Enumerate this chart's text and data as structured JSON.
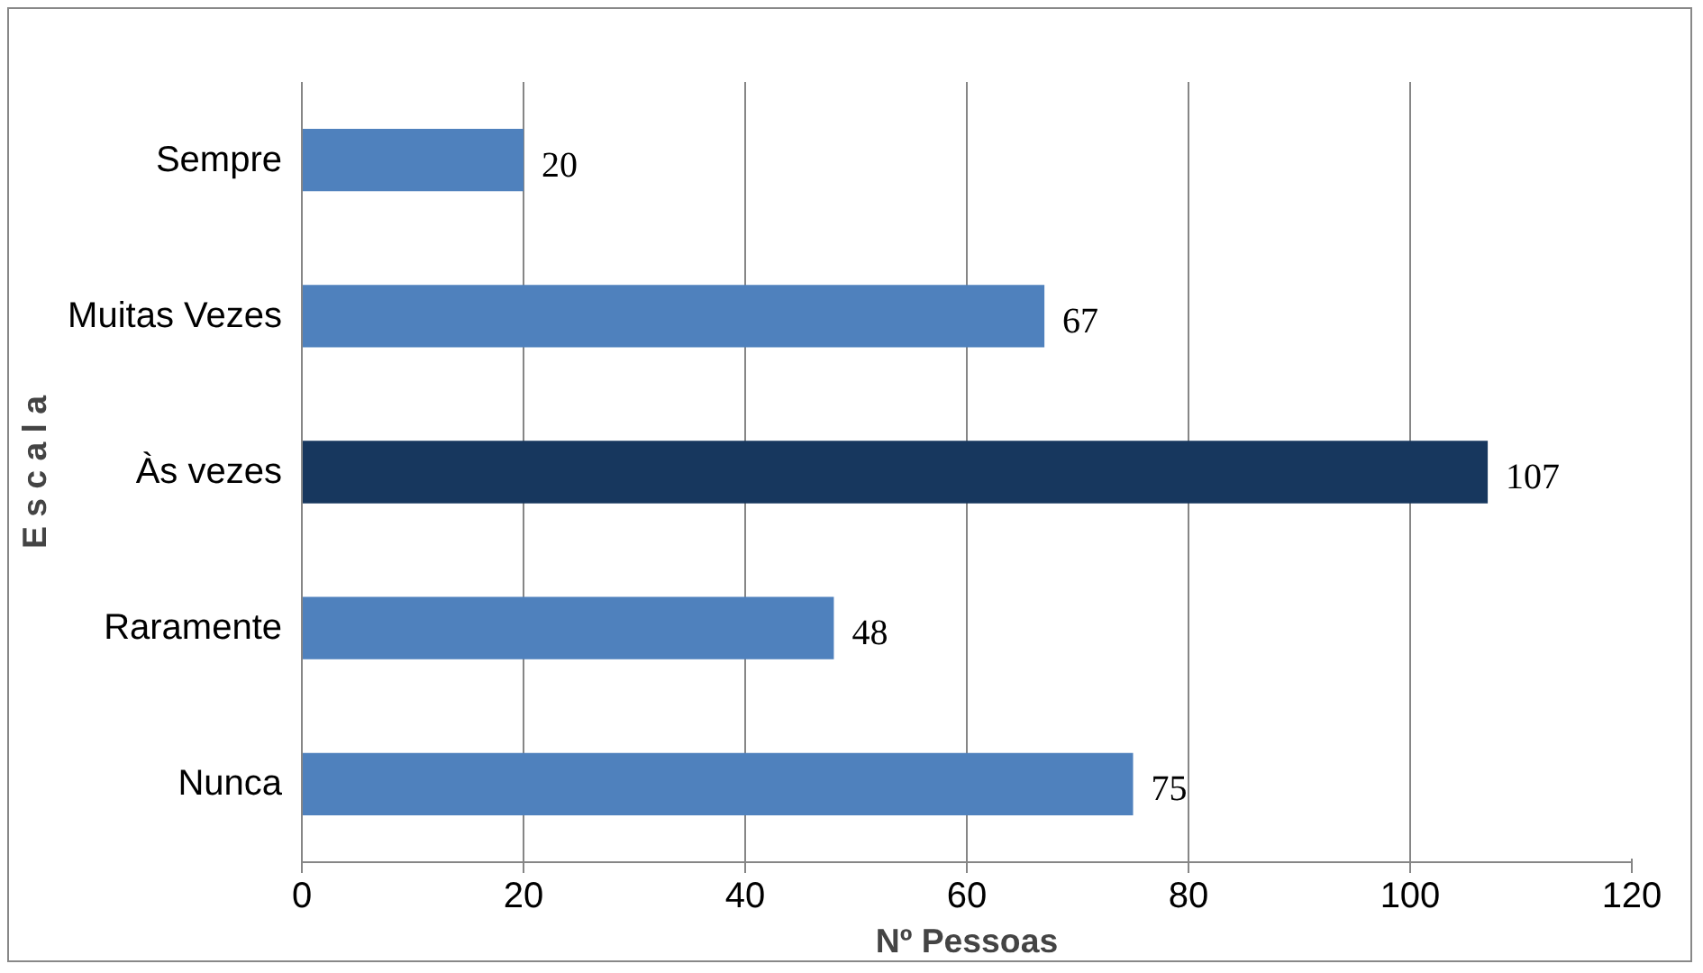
{
  "chart_data": {
    "type": "bar",
    "orientation": "horizontal",
    "xlabel": "Nº Pessoas",
    "ylabel": "E s c a l a",
    "categories": [
      "Sempre",
      "Muitas Vezes",
      "Às vezes",
      "Raramente",
      "Nunca"
    ],
    "values": [
      20,
      67,
      107,
      48,
      75
    ],
    "colors": [
      "#4f81bd",
      "#4f81bd",
      "#17375e",
      "#4f81bd",
      "#4f81bd"
    ],
    "xlim": [
      0,
      120
    ],
    "xticks": [
      0,
      20,
      40,
      60,
      80,
      100,
      120
    ],
    "grid": "x",
    "data_labels": true
  }
}
